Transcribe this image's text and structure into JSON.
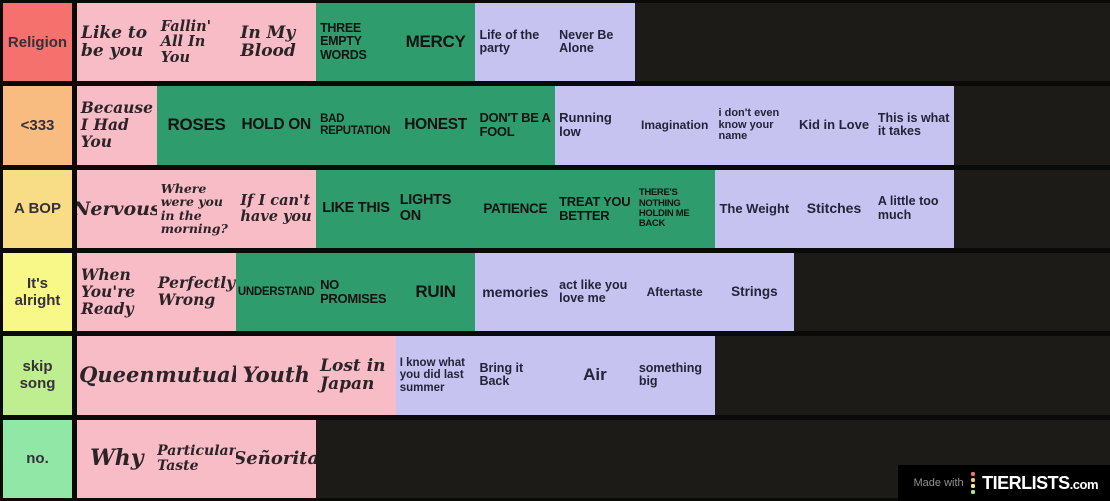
{
  "board": {
    "label_text_color": "#35303a",
    "rows": [
      {
        "label": "Religion",
        "label_color": "#f4716d",
        "items": [
          {
            "text": "Like to be you",
            "color": "pink"
          },
          {
            "text": "Fallin' All In You",
            "color": "pink"
          },
          {
            "text": "In My Blood",
            "color": "pink"
          },
          {
            "text": "THREE EMPTY WORDS",
            "color": "green"
          },
          {
            "text": "MERCY",
            "color": "green"
          },
          {
            "text": "Life of the party",
            "color": "purple"
          },
          {
            "text": "Never Be Alone",
            "color": "purple"
          }
        ]
      },
      {
        "label": "<333",
        "label_color": "#f8bc81",
        "items": [
          {
            "text": "Because I Had You",
            "color": "pink"
          },
          {
            "text": "ROSES",
            "color": "green"
          },
          {
            "text": "HOLD ON",
            "color": "green"
          },
          {
            "text": "BAD REPUTATION",
            "color": "green"
          },
          {
            "text": "HONEST",
            "color": "green"
          },
          {
            "text": "DON'T BE A FOOL",
            "color": "green"
          },
          {
            "text": "Running low",
            "color": "purple"
          },
          {
            "text": "Imagination",
            "color": "purple"
          },
          {
            "text": "i don't even know your name",
            "color": "purple"
          },
          {
            "text": "Kid in Love",
            "color": "purple"
          },
          {
            "text": "This is what it takes",
            "color": "purple"
          }
        ]
      },
      {
        "label": "A BOP",
        "label_color": "#f8dd86",
        "items": [
          {
            "text": "Nervous",
            "color": "pink"
          },
          {
            "text": "Where were you in the morning?",
            "color": "pink"
          },
          {
            "text": "If I can't have you",
            "color": "pink"
          },
          {
            "text": "LIKE THIS",
            "color": "green"
          },
          {
            "text": "LIGHTS ON",
            "color": "green"
          },
          {
            "text": "PATIENCE",
            "color": "green"
          },
          {
            "text": "TREAT YOU BETTER",
            "color": "green"
          },
          {
            "text": "THERE'S NOTHING HOLDIN ME BACK",
            "color": "green"
          },
          {
            "text": "The Weight",
            "color": "purple"
          },
          {
            "text": "Stitches",
            "color": "purple"
          },
          {
            "text": "A little too much",
            "color": "purple"
          }
        ]
      },
      {
        "label": "It's alright",
        "label_color": "#f8f888",
        "items": [
          {
            "text": "When You're Ready",
            "color": "pink"
          },
          {
            "text": "Perfectly Wrong",
            "color": "pink"
          },
          {
            "text": "UNDERSTAND",
            "color": "green"
          },
          {
            "text": "NO PROMISES",
            "color": "green"
          },
          {
            "text": "RUIN",
            "color": "green"
          },
          {
            "text": "memories",
            "color": "purple"
          },
          {
            "text": "act like you love me",
            "color": "purple"
          },
          {
            "text": "Aftertaste",
            "color": "purple"
          },
          {
            "text": "Strings",
            "color": "purple"
          }
        ]
      },
      {
        "label": "skip song",
        "label_color": "#bfee90",
        "items": [
          {
            "text": "Queen",
            "color": "pink"
          },
          {
            "text": "mutual",
            "color": "pink"
          },
          {
            "text": "Youth",
            "color": "pink"
          },
          {
            "text": "Lost in Japan",
            "color": "pink"
          },
          {
            "text": "I know what you did last summer",
            "color": "purple"
          },
          {
            "text": "Bring it Back",
            "color": "purple"
          },
          {
            "text": "Air",
            "color": "purple"
          },
          {
            "text": "something big",
            "color": "purple"
          }
        ]
      },
      {
        "label": "no.",
        "label_color": "#90e7a6",
        "items": [
          {
            "text": "Why",
            "color": "pink"
          },
          {
            "text": "Particular Taste",
            "color": "pink"
          },
          {
            "text": "Señorita",
            "color": "pink"
          }
        ]
      }
    ]
  },
  "item_colors": {
    "pink": {
      "bg": "#f8bcc7",
      "text": "#2b2427"
    },
    "green": {
      "bg": "#2f9c6e",
      "text": "#101311"
    },
    "purple": {
      "bg": "#c7c3f0",
      "text": "#232339"
    }
  },
  "badge": {
    "made_with": "Made with",
    "brand_name": "TIERLISTS",
    "brand_tld": ".com",
    "logo_dot_colors": [
      "#f4716d",
      "#f9c178",
      "#f5ef83",
      "#9fe69b"
    ]
  }
}
